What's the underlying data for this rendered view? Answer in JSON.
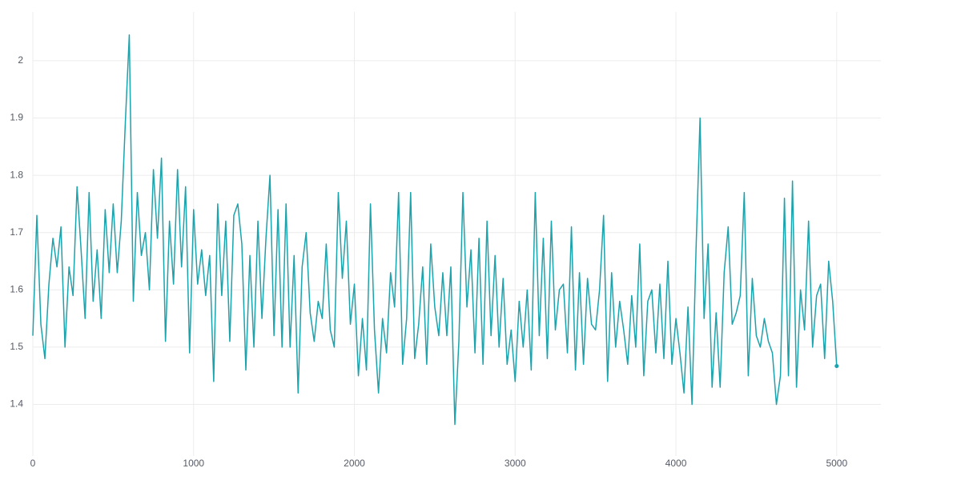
{
  "chart_data": {
    "type": "line",
    "x": [
      0,
      25,
      50,
      75,
      100,
      125,
      150,
      175,
      200,
      225,
      250,
      275,
      300,
      325,
      350,
      375,
      400,
      425,
      450,
      475,
      500,
      525,
      550,
      575,
      600,
      625,
      650,
      675,
      700,
      725,
      750,
      775,
      800,
      825,
      850,
      875,
      900,
      925,
      950,
      975,
      1000,
      1025,
      1050,
      1075,
      1100,
      1125,
      1150,
      1175,
      1200,
      1225,
      1250,
      1275,
      1300,
      1325,
      1350,
      1375,
      1400,
      1425,
      1450,
      1475,
      1500,
      1525,
      1550,
      1575,
      1600,
      1625,
      1650,
      1675,
      1700,
      1725,
      1750,
      1775,
      1800,
      1825,
      1850,
      1875,
      1900,
      1925,
      1950,
      1975,
      2000,
      2025,
      2050,
      2075,
      2100,
      2125,
      2150,
      2175,
      2200,
      2225,
      2250,
      2275,
      2300,
      2325,
      2350,
      2375,
      2400,
      2425,
      2450,
      2475,
      2500,
      2525,
      2550,
      2575,
      2600,
      2625,
      2650,
      2675,
      2700,
      2725,
      2750,
      2775,
      2800,
      2825,
      2850,
      2875,
      2900,
      2925,
      2950,
      2975,
      3000,
      3025,
      3050,
      3075,
      3100,
      3125,
      3150,
      3175,
      3200,
      3225,
      3250,
      3275,
      3300,
      3325,
      3350,
      3375,
      3400,
      3425,
      3450,
      3475,
      3500,
      3525,
      3550,
      3575,
      3600,
      3625,
      3650,
      3675,
      3700,
      3725,
      3750,
      3775,
      3800,
      3825,
      3850,
      3875,
      3900,
      3925,
      3950,
      3975,
      4000,
      4025,
      4050,
      4075,
      4100,
      4125,
      4150,
      4175,
      4200,
      4225,
      4250,
      4275,
      4300,
      4325,
      4350,
      4375,
      4400,
      4425,
      4450,
      4475,
      4500,
      4525,
      4550,
      4575,
      4600,
      4625,
      4650,
      4675,
      4700,
      4725,
      4750,
      4775,
      4800,
      4825,
      4850,
      4875,
      4900,
      4925,
      4950,
      4975,
      5000
    ],
    "series": [
      {
        "name": "value",
        "color": "#1ba3ad",
        "values": [
          1.52,
          1.73,
          1.54,
          1.48,
          1.61,
          1.69,
          1.64,
          1.71,
          1.5,
          1.64,
          1.59,
          1.78,
          1.67,
          1.55,
          1.77,
          1.58,
          1.67,
          1.55,
          1.74,
          1.63,
          1.75,
          1.63,
          1.72,
          1.89,
          2.045,
          1.58,
          1.77,
          1.66,
          1.7,
          1.6,
          1.81,
          1.69,
          1.83,
          1.51,
          1.72,
          1.61,
          1.81,
          1.64,
          1.78,
          1.49,
          1.74,
          1.61,
          1.67,
          1.59,
          1.66,
          1.44,
          1.75,
          1.59,
          1.72,
          1.51,
          1.73,
          1.75,
          1.68,
          1.46,
          1.66,
          1.5,
          1.72,
          1.55,
          1.69,
          1.8,
          1.52,
          1.74,
          1.5,
          1.75,
          1.5,
          1.66,
          1.42,
          1.64,
          1.7,
          1.56,
          1.51,
          1.58,
          1.55,
          1.68,
          1.53,
          1.5,
          1.77,
          1.62,
          1.72,
          1.54,
          1.61,
          1.45,
          1.55,
          1.46,
          1.75,
          1.53,
          1.42,
          1.55,
          1.49,
          1.63,
          1.57,
          1.77,
          1.47,
          1.55,
          1.77,
          1.48,
          1.54,
          1.64,
          1.47,
          1.68,
          1.57,
          1.52,
          1.63,
          1.52,
          1.64,
          1.365,
          1.51,
          1.77,
          1.57,
          1.67,
          1.49,
          1.69,
          1.47,
          1.72,
          1.52,
          1.66,
          1.5,
          1.62,
          1.47,
          1.53,
          1.44,
          1.58,
          1.5,
          1.6,
          1.46,
          1.77,
          1.52,
          1.69,
          1.48,
          1.72,
          1.53,
          1.6,
          1.61,
          1.49,
          1.71,
          1.46,
          1.63,
          1.47,
          1.62,
          1.54,
          1.53,
          1.6,
          1.73,
          1.44,
          1.63,
          1.5,
          1.58,
          1.53,
          1.47,
          1.59,
          1.5,
          1.68,
          1.45,
          1.58,
          1.6,
          1.49,
          1.61,
          1.48,
          1.65,
          1.47,
          1.55,
          1.49,
          1.42,
          1.57,
          1.4,
          1.67,
          1.9,
          1.55,
          1.68,
          1.43,
          1.56,
          1.43,
          1.63,
          1.71,
          1.54,
          1.56,
          1.59,
          1.77,
          1.45,
          1.62,
          1.52,
          1.5,
          1.55,
          1.51,
          1.49,
          1.4,
          1.45,
          1.76,
          1.45,
          1.79,
          1.43,
          1.6,
          1.53,
          1.72,
          1.5,
          1.59,
          1.61,
          1.48,
          1.65,
          1.58,
          1.467
        ]
      }
    ],
    "xlim": [
      0,
      5275
    ],
    "xticks": [
      0,
      1000,
      2000,
      3000,
      4000,
      5000
    ],
    "ylim": [
      1.31,
      2.085
    ],
    "yticks": [
      1.4,
      1.5,
      1.6,
      1.7,
      1.8,
      1.9,
      2
    ],
    "grid": true
  }
}
